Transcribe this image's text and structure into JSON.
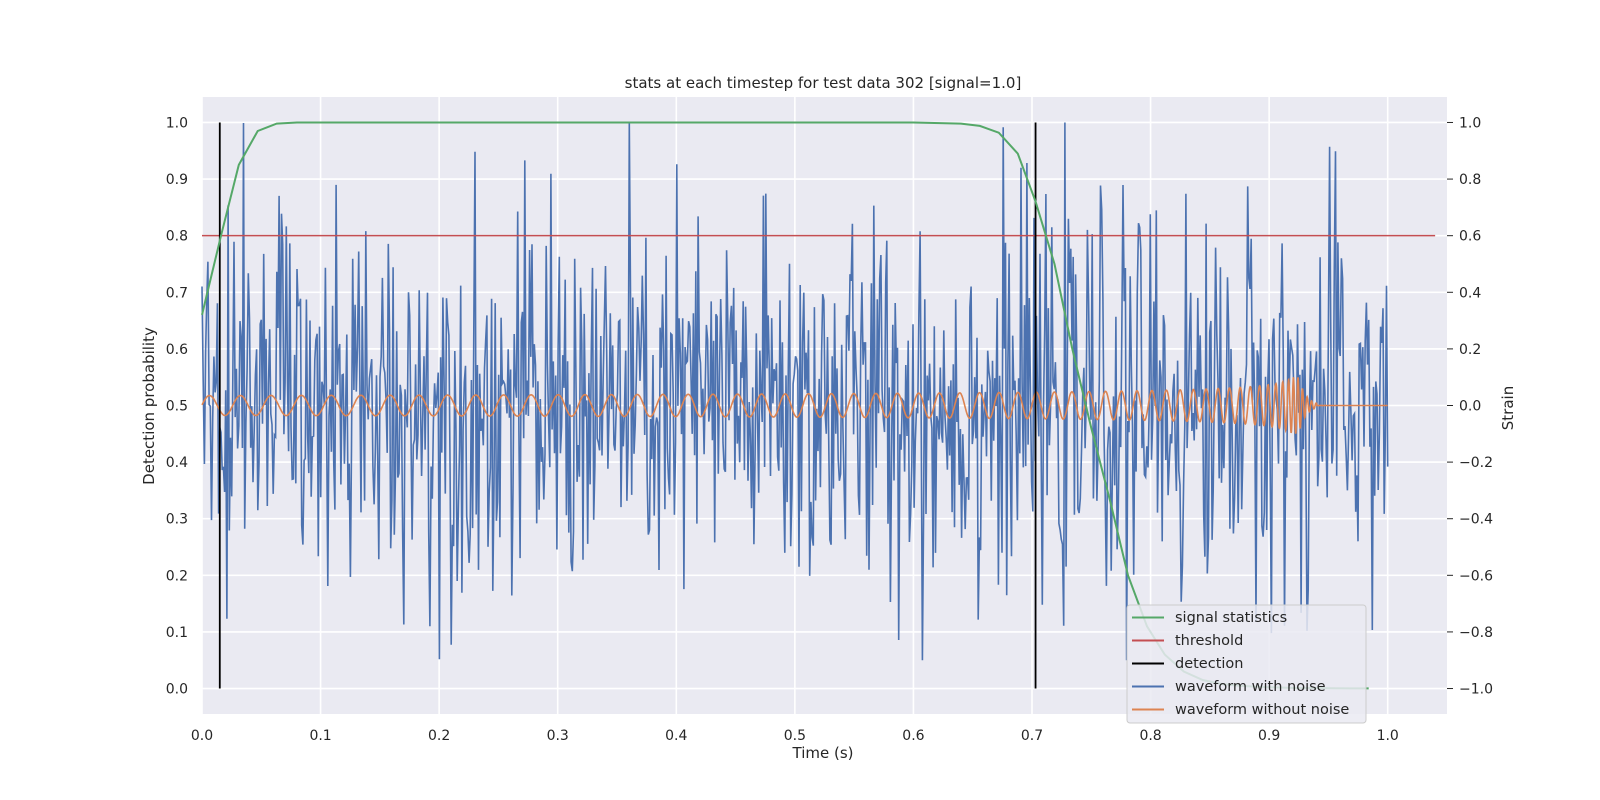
{
  "chart_data": {
    "type": "line",
    "title": "stats at each timestep for test data 302 [signal=1.0]",
    "xlabel": "Time (s)",
    "ylabel_left": "Detection probability",
    "ylabel_right": "Strain",
    "xlim": [
      0.0,
      1.05
    ],
    "ylim_left": [
      -0.045,
      1.045
    ],
    "ylim_right": [
      -1.09,
      1.09
    ],
    "x_ticks": [
      "0.0",
      "0.1",
      "0.2",
      "0.3",
      "0.4",
      "0.5",
      "0.6",
      "0.7",
      "0.8",
      "0.9",
      "1.0"
    ],
    "y_left_ticks": [
      "0.0",
      "0.1",
      "0.2",
      "0.3",
      "0.4",
      "0.5",
      "0.6",
      "0.7",
      "0.8",
      "0.9",
      "1.0"
    ],
    "y_right_ticks": [
      "−1.0",
      "−0.8",
      "−0.6",
      "−0.4",
      "−0.2",
      "0.0",
      "0.2",
      "0.4",
      "0.6",
      "0.8",
      "1.0"
    ],
    "grid": true,
    "background": "#eaeaf2",
    "legend_position": "lower-right",
    "series": [
      {
        "name": "signal statistics",
        "axis": "left",
        "color": "#55a868",
        "x": [
          0.0,
          0.016,
          0.031,
          0.047,
          0.063,
          0.08,
          0.2,
          0.4,
          0.6,
          0.64,
          0.656,
          0.672,
          0.688,
          0.703,
          0.719,
          0.734,
          0.75,
          0.766,
          0.781,
          0.797,
          0.812,
          0.828,
          0.844,
          0.86,
          0.875,
          0.89,
          0.906,
          0.922,
          0.938,
          0.953,
          0.969,
          0.984
        ],
        "values": [
          0.66,
          0.8,
          0.925,
          0.985,
          0.998,
          1.0,
          1.0,
          1.0,
          1.0,
          0.998,
          0.994,
          0.982,
          0.945,
          0.86,
          0.75,
          0.6,
          0.46,
          0.33,
          0.2,
          0.11,
          0.06,
          0.03,
          0.015,
          0.008,
          0.005,
          0.003,
          0.002,
          0.001,
          0.001,
          0.0005,
          0.0003,
          0.0002
        ]
      },
      {
        "name": "threshold",
        "axis": "left",
        "color": "#c44e52",
        "x": [
          0.0,
          1.04
        ],
        "values": [
          0.8,
          0.8
        ]
      },
      {
        "name": "detection",
        "axis": "left",
        "color": "#000000",
        "vlines_x": [
          0.015,
          0.703
        ],
        "ymin": 0.0,
        "ymax": 1.0
      },
      {
        "name": "waveform with noise",
        "axis": "right",
        "color": "#4c72b0",
        "x_range": [
          0.0,
          1.0
        ],
        "num_points": 1000,
        "amplitude_std": 0.33,
        "amplitude_range": [
          -0.9,
          1.0
        ]
      },
      {
        "name": "waveform without noise",
        "axis": "right",
        "color": "#dd8452",
        "x_range": [
          0.0,
          1.0
        ],
        "amplitude": 0.035,
        "peak_amplitude": 0.1,
        "merger_time": 0.925,
        "ringdown_end": 0.94,
        "start_frequency_hz": 38,
        "end_frequency_hz": 260
      }
    ]
  }
}
